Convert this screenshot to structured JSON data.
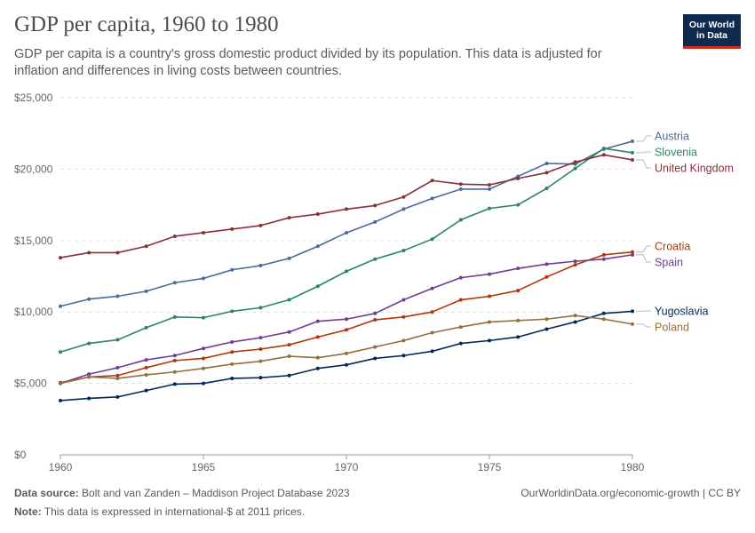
{
  "header": {
    "title": "GDP per capita, 1960 to 1980",
    "subtitle": "GDP per capita is a country's gross domestic product divided by its population. This data is adjusted for inflation and differences in living costs between countries.",
    "logo_line1": "Our World",
    "logo_line2": "in Data"
  },
  "footer": {
    "source_label": "Data source:",
    "source_text": "Bolt and van Zanden – Maddison Project Database 2023",
    "note_label": "Note:",
    "note_text": "This data is expressed in international-$ at 2011 prices.",
    "url_text": "OurWorldinData.org/economic-growth | CC BY"
  },
  "chart_data": {
    "type": "line",
    "x": [
      1960,
      1961,
      1962,
      1963,
      1964,
      1965,
      1966,
      1967,
      1968,
      1969,
      1970,
      1971,
      1972,
      1973,
      1974,
      1975,
      1976,
      1977,
      1978,
      1979,
      1980
    ],
    "xlim": [
      1960,
      1980
    ],
    "ylim": [
      0,
      25000
    ],
    "x_ticks": [
      1960,
      1965,
      1970,
      1975,
      1980
    ],
    "y_ticks": [
      0,
      5000,
      10000,
      15000,
      20000,
      25000
    ],
    "y_tick_labels": [
      "$0",
      "$5,000",
      "$10,000",
      "$15,000",
      "$20,000",
      "$25,000"
    ],
    "grid": "horizontal dashed",
    "legend": "right, labels at line ends",
    "series": [
      {
        "name": "Austria",
        "color": "#4c6a9c",
        "values": [
          10400,
          10900,
          11100,
          11450,
          12050,
          12350,
          12950,
          13250,
          13750,
          14600,
          15550,
          16300,
          17200,
          17950,
          18600,
          18600,
          19500,
          20400,
          20350,
          21400,
          21950
        ]
      },
      {
        "name": "Slovenia",
        "color": "#2c8465",
        "values": [
          7200,
          7800,
          8050,
          8900,
          9650,
          9600,
          10050,
          10300,
          10850,
          11800,
          12850,
          13700,
          14300,
          15100,
          16450,
          17250,
          17500,
          18650,
          20050,
          21450,
          21150
        ]
      },
      {
        "name": "United Kingdom",
        "color": "#883039",
        "values": [
          13800,
          14150,
          14150,
          14600,
          15300,
          15550,
          15800,
          16050,
          16600,
          16850,
          17200,
          17450,
          18050,
          19200,
          18950,
          18900,
          19350,
          19750,
          20500,
          21000,
          20650
        ]
      },
      {
        "name": "Croatia",
        "color": "#b13507",
        "values": [
          5050,
          5450,
          5550,
          6100,
          6600,
          6750,
          7200,
          7400,
          7700,
          8250,
          8750,
          9450,
          9650,
          10000,
          10850,
          11100,
          11500,
          12450,
          13300,
          14000,
          14200
        ]
      },
      {
        "name": "Spain",
        "color": "#6d3e91",
        "values": [
          5000,
          5650,
          6100,
          6650,
          6950,
          7450,
          7900,
          8200,
          8600,
          9350,
          9500,
          9900,
          10850,
          11650,
          12400,
          12650,
          13050,
          13350,
          13550,
          13700,
          14000
        ]
      },
      {
        "name": "Yugoslavia",
        "color": "#00295b",
        "values": [
          3800,
          3950,
          4050,
          4500,
          4950,
          5000,
          5350,
          5400,
          5550,
          6050,
          6300,
          6750,
          6950,
          7250,
          7800,
          8000,
          8250,
          8800,
          9300,
          9900,
          10050
        ]
      },
      {
        "name": "Poland",
        "color": "#996d39",
        "values": [
          5000,
          5450,
          5350,
          5600,
          5800,
          6050,
          6350,
          6550,
          6900,
          6800,
          7100,
          7550,
          8000,
          8550,
          8950,
          9300,
          9400,
          9500,
          9750,
          9500,
          9150
        ]
      }
    ]
  }
}
